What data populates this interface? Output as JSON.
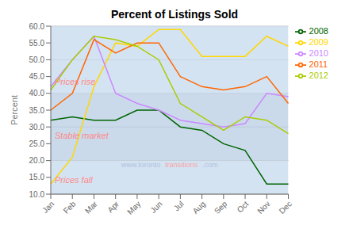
{
  "chart_data": {
    "type": "line",
    "title": "Percent of Listings Sold",
    "y_label": "Percent",
    "categories": [
      "Jan",
      "Feb",
      "Mar",
      "Apr",
      "May",
      "Jun",
      "Jul",
      "Aug",
      "Sep",
      "Oct",
      "Nov",
      "Dec"
    ],
    "series": [
      {
        "name": "2008",
        "color": "#006400",
        "values": [
          32,
          33,
          32,
          32,
          35,
          35,
          30,
          29,
          25,
          23,
          13,
          13
        ]
      },
      {
        "name": "2009",
        "color": "#FFD700",
        "values": [
          13,
          21,
          42,
          55,
          54,
          59,
          59,
          51,
          51,
          51,
          57,
          54
        ]
      },
      {
        "name": "2010",
        "color": "#CC88FF",
        "values": [
          42,
          50,
          57,
          40,
          37,
          35,
          32,
          31,
          30,
          31,
          40,
          39
        ]
      },
      {
        "name": "2011",
        "color": "#FF6600",
        "values": [
          35,
          40,
          56,
          52,
          55,
          55,
          45,
          42,
          41,
          42,
          45,
          37
        ]
      },
      {
        "name": "2012",
        "color": "#AACC00",
        "values": [
          41,
          50,
          57,
          56,
          54,
          50,
          37,
          33,
          29,
          33,
          32,
          28
        ]
      }
    ],
    "ylim": [
      10.0,
      60.0
    ],
    "yticks": [
      {
        "value": 10,
        "label": "10.0"
      },
      {
        "value": 15,
        "label": "15.0"
      },
      {
        "value": 20,
        "label": "20.0"
      },
      {
        "value": 25,
        "label": "25.0"
      },
      {
        "value": 30,
        "label": "30.0"
      },
      {
        "value": 35,
        "label": "35.0"
      },
      {
        "value": 40,
        "label": "40.0"
      },
      {
        "value": 45,
        "label": "45.0"
      },
      {
        "value": 50,
        "label": "50.0"
      },
      {
        "value": 55,
        "label": "55.0"
      },
      {
        "value": 60,
        "label": "60.0"
      }
    ],
    "grid": true,
    "legend": "right",
    "bands": [
      {
        "from": 40,
        "to": 60,
        "color": "#C5D9EE"
      },
      {
        "from": 20,
        "to": 40,
        "color": "#B8CDE4"
      },
      {
        "from": 10,
        "to": 20,
        "color": "#C5D9EE"
      }
    ],
    "annotations": [
      {
        "text": "Prices rise",
        "y": 43.5,
        "color": "#FF8888"
      },
      {
        "text": "Stable market",
        "y": 27.5,
        "color": "#FF8888"
      },
      {
        "text": "Prices fall",
        "y": 14.2,
        "color": "#FF8888"
      }
    ],
    "watermark": {
      "y": 18.5,
      "parts": [
        {
          "text": "www.toronto",
          "color": "#AABBDD"
        },
        {
          "text": "transitions",
          "color": "#FF9999"
        },
        {
          "text": ".com",
          "color": "#AABBDD"
        }
      ]
    }
  }
}
